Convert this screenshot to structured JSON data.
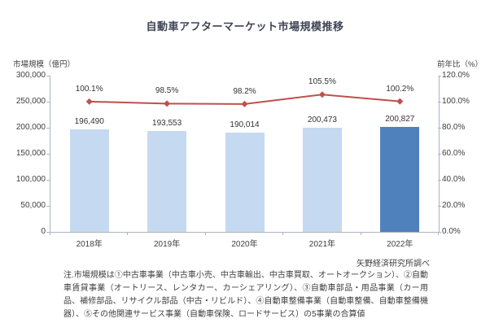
{
  "title": "自動車アフターマーケット市場規模推移",
  "source_note": "矢野経済研究所調べ",
  "footnote": "注.市場規模は①中古車事業（中古車小売、中古車輸出、中古車買取、オートオークション）、②自動車賃貸事業（オートリース、レンタカー、カーシェアリング）、③自動車部品・用品事業（カー用品、補修部品、リサイクル部品（中古・リビルド）、④自動車整備事業（自動車整備、自動車整備機器）、⑤その他関連サービス事業（自動車保険、ロードサービス）の5事業の合算値",
  "colors": {
    "bar_light": "#c5d9f1",
    "bar_highlight": "#4f81bd",
    "line": "#c0504d",
    "axis": "#a9b6c2",
    "text": "#404040"
  },
  "chart_data": {
    "type": "bar",
    "subtype": "bar-line-combo",
    "categories": [
      "2018年",
      "2019年",
      "2020年",
      "2021年",
      "2022年"
    ],
    "series": [
      {
        "name": "市場規模（億円）",
        "type": "bar",
        "axis": "left",
        "values": [
          196490,
          193553,
          190014,
          200473,
          200827
        ],
        "labels": [
          "196,490",
          "193,553",
          "190,014",
          "200,473",
          "200,827"
        ]
      },
      {
        "name": "前年比（%）",
        "type": "line",
        "axis": "right",
        "values": [
          100.1,
          98.5,
          98.2,
          105.5,
          100.2
        ],
        "labels": [
          "100.1%",
          "98.5%",
          "98.2%",
          "105.5%",
          "100.2%"
        ]
      }
    ],
    "left_axis": {
      "label": "市場規模（億円）",
      "min": 0,
      "max": 300000,
      "ticks": [
        "300,000",
        "250,000",
        "200,000",
        "150,000",
        "100,000",
        "50,000",
        "0"
      ]
    },
    "right_axis": {
      "label": "前年比（%）",
      "min": 0,
      "max": 120,
      "ticks": [
        "120.0%",
        "100.0%",
        "80.0%",
        "60.0%",
        "40.0%",
        "20.0%",
        "0.0%"
      ]
    },
    "highlight_index": 4,
    "grid": false,
    "legend": "none"
  }
}
